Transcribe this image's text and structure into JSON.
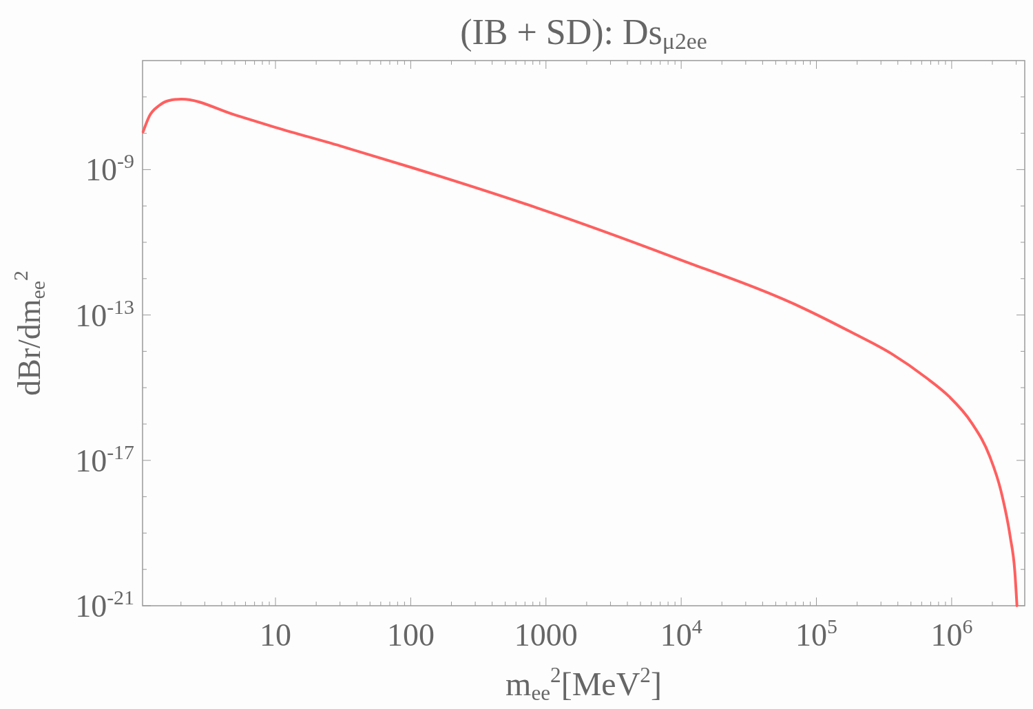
{
  "chart_data": {
    "type": "line",
    "title": "(IB + SD): Ds$_{μ2ee}$",
    "xlabel": "m$_{ee}$$^{2}$[MeV$^{2}$]",
    "ylabel": "dBr/dm$_{ee}$$^{2}$",
    "log": "xy",
    "grid": false,
    "marker": "none",
    "line_style": "solid",
    "xlim": [
      1.04,
      3470000
    ],
    "ylim": [
      1e-21,
      1e-06
    ],
    "xticks": [
      {
        "value": 2,
        "label": null
      },
      {
        "value": 3,
        "label": null
      },
      {
        "value": 4,
        "label": null
      },
      {
        "value": 5,
        "label": null
      },
      {
        "value": 6,
        "label": null
      },
      {
        "value": 7,
        "label": null
      },
      {
        "value": 8,
        "label": null
      },
      {
        "value": 9,
        "label": null
      },
      10,
      {
        "value": 20,
        "label": null
      },
      {
        "value": 30,
        "label": null
      },
      {
        "value": 40,
        "label": null
      },
      {
        "value": 50,
        "label": null
      },
      {
        "value": 60,
        "label": null
      },
      {
        "value": 70,
        "label": null
      },
      {
        "value": 80,
        "label": null
      },
      {
        "value": 90,
        "label": null
      },
      100,
      {
        "value": 200,
        "label": null
      },
      {
        "value": 300,
        "label": null
      },
      {
        "value": 400,
        "label": null
      },
      {
        "value": 500,
        "label": null
      },
      {
        "value": 600,
        "label": null
      },
      {
        "value": 700,
        "label": null
      },
      {
        "value": 800,
        "label": null
      },
      {
        "value": 900,
        "label": null
      },
      1000,
      {
        "value": 2000,
        "label": null
      },
      {
        "value": 3000,
        "label": null
      },
      {
        "value": 4000,
        "label": null
      },
      {
        "value": 5000,
        "label": null
      },
      {
        "value": 6000,
        "label": null
      },
      {
        "value": 7000,
        "label": null
      },
      {
        "value": 8000,
        "label": null
      },
      {
        "value": 9000,
        "label": null
      },
      {
        "value": 10000,
        "label": "10$^{4}$"
      },
      {
        "value": 20000,
        "label": null
      },
      {
        "value": 30000,
        "label": null
      },
      {
        "value": 40000,
        "label": null
      },
      {
        "value": 50000,
        "label": null
      },
      {
        "value": 60000,
        "label": null
      },
      {
        "value": 70000,
        "label": null
      },
      {
        "value": 80000,
        "label": null
      },
      {
        "value": 90000,
        "label": null
      },
      {
        "value": 100000,
        "label": "10$^{5}$"
      },
      {
        "value": 200000,
        "label": null
      },
      {
        "value": 300000,
        "label": null
      },
      {
        "value": 400000,
        "label": null
      },
      {
        "value": 500000,
        "label": null
      },
      {
        "value": 600000,
        "label": null
      },
      {
        "value": 700000,
        "label": null
      },
      {
        "value": 800000,
        "label": null
      },
      {
        "value": 900000,
        "label": null
      },
      {
        "value": 1000000,
        "label": "10$^{6}$"
      },
      {
        "value": 2000000,
        "label": null
      },
      {
        "value": 3000000,
        "label": null
      }
    ],
    "yticks": [
      {
        "value": 1e-21,
        "label": "10$^{-21}$"
      },
      {
        "value": 1e-20,
        "label": null
      },
      {
        "value": 1e-19,
        "label": null
      },
      {
        "value": 1e-18,
        "label": null
      },
      {
        "value": 1e-17,
        "label": "10$^{-17}$"
      },
      {
        "value": 1e-16,
        "label": null
      },
      {
        "value": 1e-15,
        "label": null
      },
      {
        "value": 1e-14,
        "label": null
      },
      {
        "value": 1e-13,
        "label": "10$^{-13}$"
      },
      {
        "value": 1e-12,
        "label": null
      },
      {
        "value": 1e-11,
        "label": null
      },
      {
        "value": 1e-10,
        "label": null
      },
      {
        "value": 1e-09,
        "label": "10$^{-9}$"
      },
      {
        "value": 1e-08,
        "label": null
      },
      {
        "value": 1e-07,
        "label": null
      }
    ],
    "series": [
      {
        "color": "#ff5f5f",
        "x": [
          1.05,
          1.17,
          1.38,
          1.6,
          2.02,
          5,
          10,
          30,
          105,
          855,
          8750,
          82600,
          180000,
          361000,
          646000,
          953000,
          1400000,
          1910000,
          2320000,
          2710000,
          2930000,
          3040000
        ],
        "values": [
          1.1e-08,
          3e-08,
          5.8e-08,
          7.8e-08,
          8.7e-08,
          3.2e-08,
          1.45e-08,
          4.5e-09,
          1.1e-09,
          8.9e-11,
          3.9e-12,
          1.45e-13,
          3.4e-14,
          8.5e-15,
          1.9e-15,
          5.8e-16,
          1.1e-16,
          1.3e-17,
          1.4e-18,
          7.9e-20,
          8.9e-21,
          1e-21
        ]
      }
    ]
  }
}
